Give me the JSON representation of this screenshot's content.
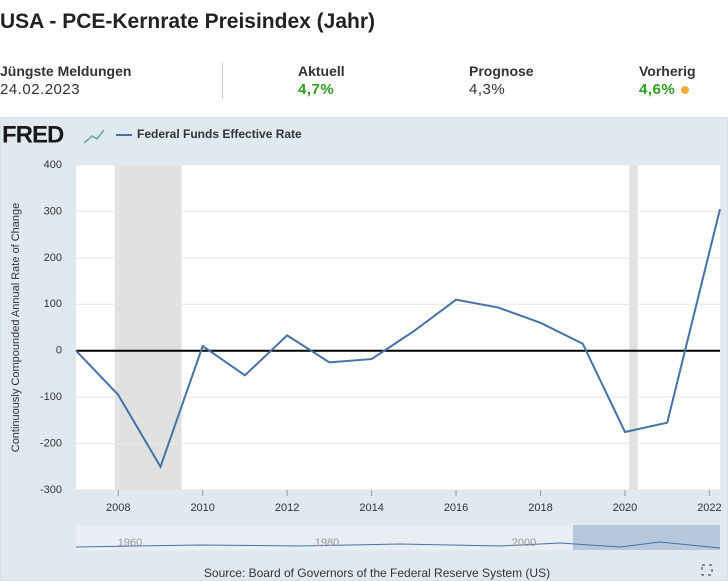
{
  "header": {
    "title": "USA - PCE-Kernrate Preisindex (Jahr)"
  },
  "stats": [
    {
      "label": "Jüngste Meldungen",
      "value": "24.02.2023"
    },
    {
      "label": "Aktuell",
      "value": "4,7%"
    },
    {
      "label": "Prognose",
      "value": "4,3%"
    },
    {
      "label": "Vorherig",
      "value": "4,6%"
    }
  ],
  "logo": "FRED",
  "chart_data": {
    "type": "line",
    "y_label": "Continuously Compounded Annual Rate of Change",
    "x": [
      2007,
      2008,
      2009,
      2010,
      2011,
      2012,
      2013,
      2014,
      2015,
      2016,
      2017,
      2018,
      2019,
      2020,
      2021,
      2022.25
    ],
    "series": [
      {
        "name": "Federal Funds Effective Rate",
        "color": "#4572a7",
        "values": [
          0,
          -95,
          -250,
          10,
          -53,
          33,
          -25,
          -18,
          42,
          110,
          93,
          60,
          15,
          -175,
          -155,
          305
        ]
      }
    ],
    "recessions": [
      [
        2007.92,
        2009.5
      ],
      [
        2020.1,
        2020.3
      ]
    ],
    "xlim": [
      2007,
      2022.25
    ],
    "xticks": [
      2008,
      2010,
      2012,
      2014,
      2016,
      2018,
      2020,
      2022
    ],
    "ylim": [
      -300,
      400
    ],
    "yticks": [
      -300,
      -200,
      -100,
      0,
      100,
      200,
      300,
      400
    ],
    "grid": true
  },
  "navigator": {
    "labels": [
      "1960",
      "1980",
      "2000"
    ]
  },
  "source": "Source: Board of Governors of the Federal Reserve System (US)"
}
